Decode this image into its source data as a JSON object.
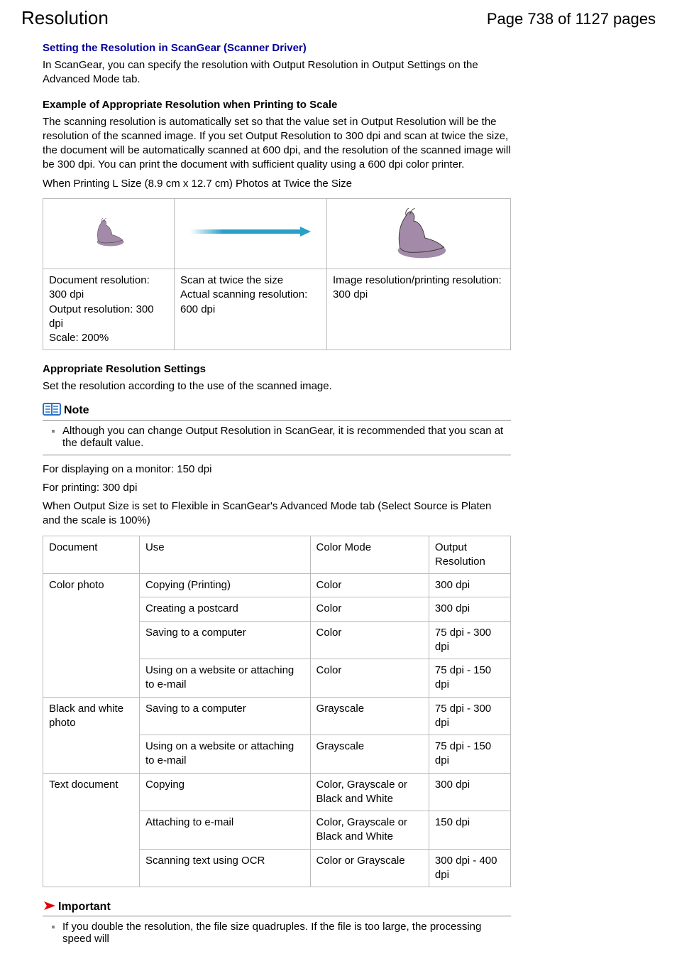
{
  "header": {
    "title": "Resolution",
    "page_indicator": "Page 738 of 1127 pages"
  },
  "section1": {
    "heading": "Setting the Resolution in ScanGear (Scanner Driver)",
    "text": "In ScanGear, you can specify the resolution with Output Resolution in Output Settings on the Advanced Mode tab."
  },
  "section2": {
    "heading": "Example of Appropriate Resolution when Printing to Scale",
    "para": "The scanning resolution is automatically set so that the value set in Output Resolution will be the resolution of the scanned image. If you set Output Resolution to 300 dpi and scan at twice the size, the document will be automatically scanned at 600 dpi, and the resolution of the scanned image will be 300 dpi. You can print the document with sufficient quality using a 600 dpi color printer.",
    "sub": "When Printing L Size (8.9 cm x 12.7 cm) Photos at Twice the Size",
    "table": {
      "cell1_a": "Document resolution: 300 dpi",
      "cell1_b": "Output resolution: 300 dpi",
      "cell1_c": "Scale: 200%",
      "cell2_a": "Scan at twice the size",
      "cell2_b": "Actual scanning resolution: 600 dpi",
      "cell3_a": "Image resolution/printing resolution: 300 dpi"
    },
    "seal_color": "#a28aa8",
    "arrow_color": "#2aa0c8"
  },
  "section3": {
    "heading": "Appropriate Resolution Settings",
    "para": "Set the resolution according to the use of the scanned image."
  },
  "note": {
    "label": "Note",
    "icon_color": "#2a74c7",
    "item": "Although you can change Output Resolution in ScanGear, it is recommended that you scan at the default value."
  },
  "lines": {
    "l1": "For displaying on a monitor: 150 dpi",
    "l2": "For printing: 300 dpi",
    "l3": "When Output Size is set to Flexible in ScanGear's Advanced Mode tab (Select Source is Platen and the scale is 100%)"
  },
  "res_table": {
    "head": {
      "c1": "Document",
      "c2": "Use",
      "c3": "Color Mode",
      "c4": "Output Resolution"
    },
    "rows": [
      {
        "doc": "Color photo",
        "doc_rowspan": 4,
        "use": "Copying (Printing)",
        "mode": "Color",
        "out": "300 dpi"
      },
      {
        "use": "Creating a postcard",
        "mode": "Color",
        "out": "300 dpi"
      },
      {
        "use": "Saving to a computer",
        "mode": "Color",
        "out": "75 dpi - 300 dpi"
      },
      {
        "use": "Using on a website or attaching to e-mail",
        "mode": "Color",
        "out": "75 dpi - 150 dpi"
      },
      {
        "doc": "Black and white photo",
        "doc_rowspan": 2,
        "use": "Saving to a computer",
        "mode": "Grayscale",
        "out": "75 dpi - 300 dpi"
      },
      {
        "use": "Using on a website or attaching to e-mail",
        "mode": "Grayscale",
        "out": "75 dpi - 150 dpi"
      },
      {
        "doc": "Text document",
        "doc_rowspan": 3,
        "use": "Copying",
        "mode": "Color, Grayscale or Black and White",
        "out": "300 dpi"
      },
      {
        "use": "Attaching to e-mail",
        "mode": "Color, Grayscale or Black and White",
        "out": "150 dpi"
      },
      {
        "use": "Scanning text using OCR",
        "mode": "Color or Grayscale",
        "out": "300 dpi - 400 dpi"
      }
    ]
  },
  "important": {
    "label": "Important",
    "icon_color": "#e00000",
    "item": "If you double the resolution, the file size quadruples. If the file is too large, the processing speed will"
  }
}
